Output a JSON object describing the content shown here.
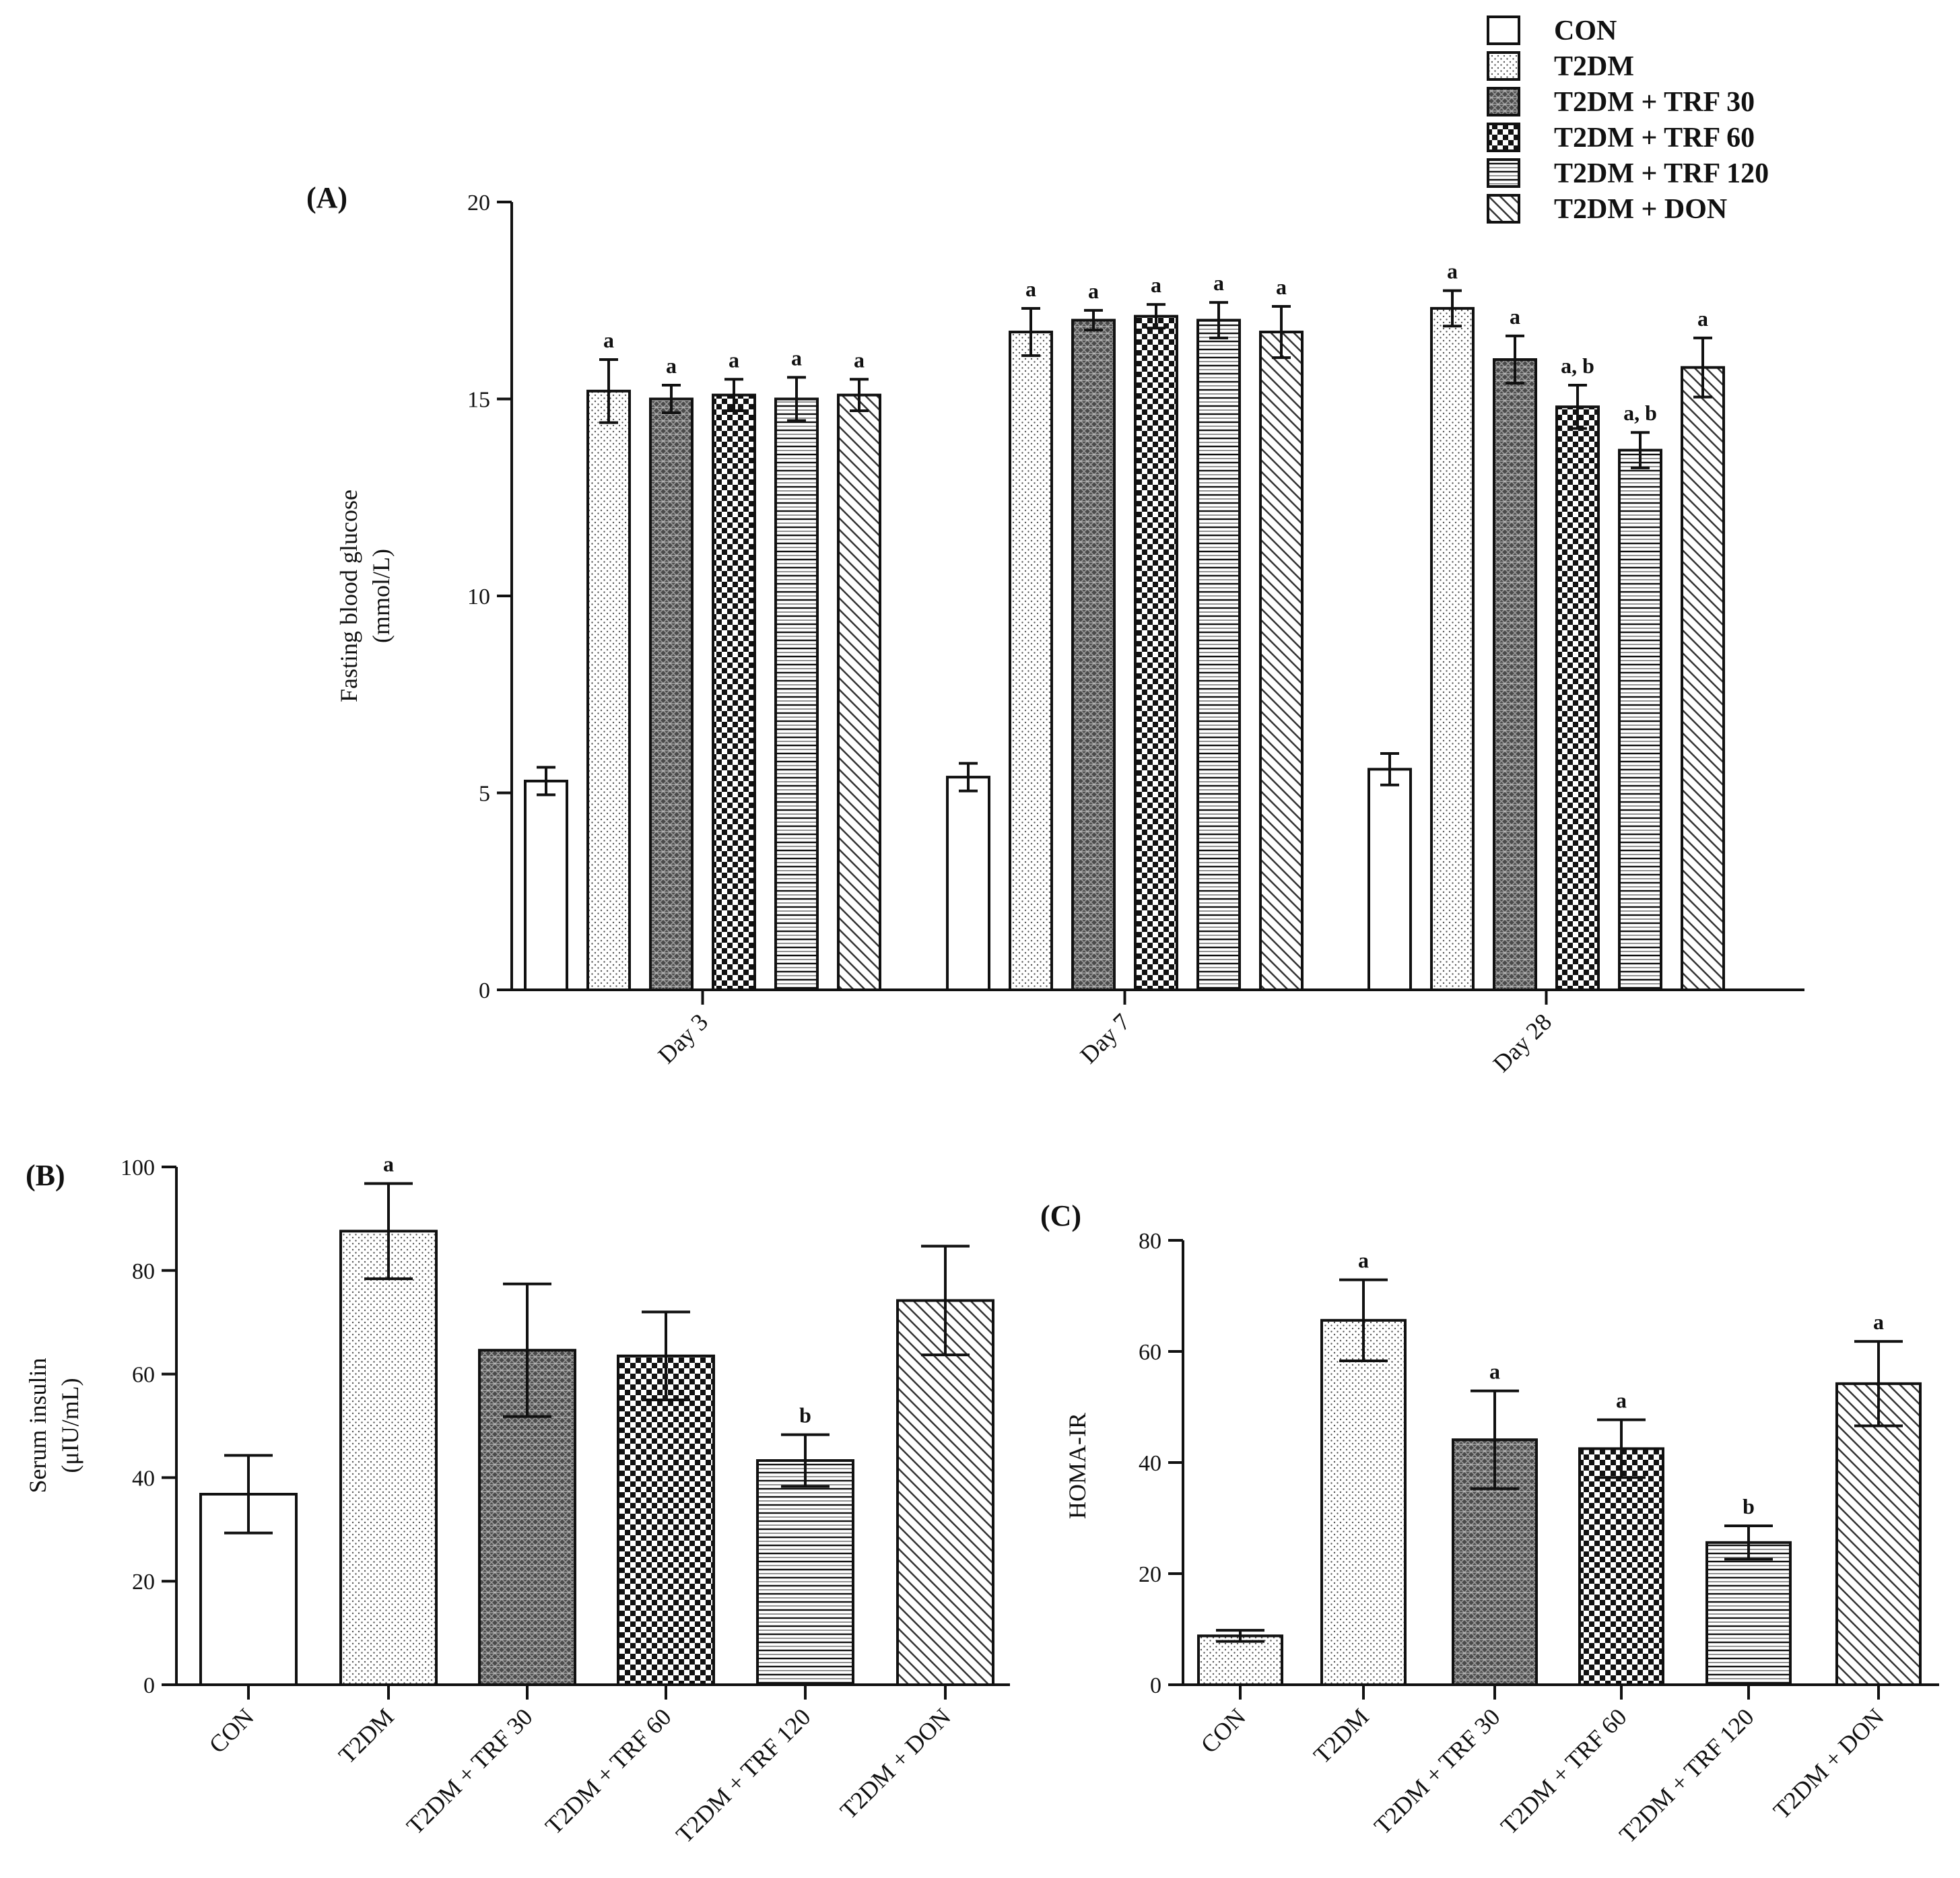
{
  "chart_data": [
    {
      "id": "A",
      "type": "bar",
      "panel_label": "(A)",
      "ylabel": [
        "Fasting blood glucose",
        "(mmol/L)"
      ],
      "ylim": [
        0,
        20
      ],
      "yticks": [
        0,
        5,
        10,
        15,
        20
      ],
      "categories": [
        "Day 3",
        "Day 7",
        "Day 28"
      ],
      "series": [
        {
          "name": "CON",
          "values": [
            5.3,
            5.4,
            5.6
          ],
          "errors": [
            0.35,
            0.35,
            0.4
          ],
          "labels": [
            "",
            "",
            ""
          ],
          "pattern": "blank"
        },
        {
          "name": "T2DM",
          "values": [
            15.2,
            16.7,
            17.3
          ],
          "errors": [
            0.8,
            0.6,
            0.45
          ],
          "labels": [
            "a",
            "a",
            "a"
          ],
          "pattern": "dots"
        },
        {
          "name": "T2DM + TRF 30",
          "values": [
            15.0,
            17.0,
            16.0
          ],
          "errors": [
            0.35,
            0.25,
            0.6
          ],
          "labels": [
            "a",
            "a",
            "a"
          ],
          "pattern": "dense"
        },
        {
          "name": "T2DM + TRF 60",
          "values": [
            15.1,
            17.1,
            14.8
          ],
          "errors": [
            0.4,
            0.3,
            0.55
          ],
          "labels": [
            "a",
            "a",
            "a, b"
          ],
          "pattern": "checker"
        },
        {
          "name": "T2DM + TRF 120",
          "values": [
            15.0,
            17.0,
            13.7
          ],
          "errors": [
            0.55,
            0.45,
            0.45
          ],
          "labels": [
            "a",
            "a",
            "a, b"
          ],
          "pattern": "hlines"
        },
        {
          "name": "T2DM + DON",
          "values": [
            15.1,
            16.7,
            15.8
          ],
          "errors": [
            0.4,
            0.65,
            0.75
          ],
          "labels": [
            "a",
            "a",
            "a"
          ],
          "pattern": "diag"
        }
      ],
      "legend_position": "top-right"
    },
    {
      "id": "B",
      "type": "bar",
      "panel_label": "(B)",
      "ylabel": [
        "Serum insulin",
        "(μIU/mL)"
      ],
      "ylim": [
        0,
        100
      ],
      "yticks": [
        0,
        20,
        40,
        60,
        80,
        100
      ],
      "categories": [
        "CON",
        "T2DM",
        "T2DM + TRF 30",
        "T2DM + TRF 60",
        "T2DM + TRF 120",
        "T2DM + DON"
      ],
      "values": [
        36.8,
        87.6,
        64.6,
        63.5,
        43.3,
        74.2
      ],
      "errors": [
        7.5,
        9.2,
        12.8,
        8.5,
        5.0,
        10.5
      ],
      "labels": [
        "",
        "a",
        "",
        "",
        "b",
        ""
      ],
      "patterns": [
        "blank",
        "dots",
        "dense",
        "checker",
        "hlines",
        "diag"
      ]
    },
    {
      "id": "C",
      "type": "bar",
      "panel_label": "(C)",
      "ylabel": [
        "HOMA-IR"
      ],
      "ylim": [
        0,
        80
      ],
      "yticks": [
        0,
        20,
        40,
        60,
        80
      ],
      "categories": [
        "CON",
        "T2DM",
        "T2DM + TRF 30",
        "T2DM + TRF 60",
        "T2DM + TRF 120",
        "T2DM + DON"
      ],
      "values": [
        8.8,
        65.6,
        44.1,
        42.5,
        25.6,
        54.2
      ],
      "errors": [
        1.0,
        7.3,
        8.8,
        5.2,
        3.0,
        7.6
      ],
      "labels": [
        "",
        "a",
        "a",
        "a",
        "b",
        "a"
      ],
      "patterns": [
        "dots",
        "dots",
        "dense",
        "checker",
        "hlines",
        "diag"
      ]
    }
  ]
}
